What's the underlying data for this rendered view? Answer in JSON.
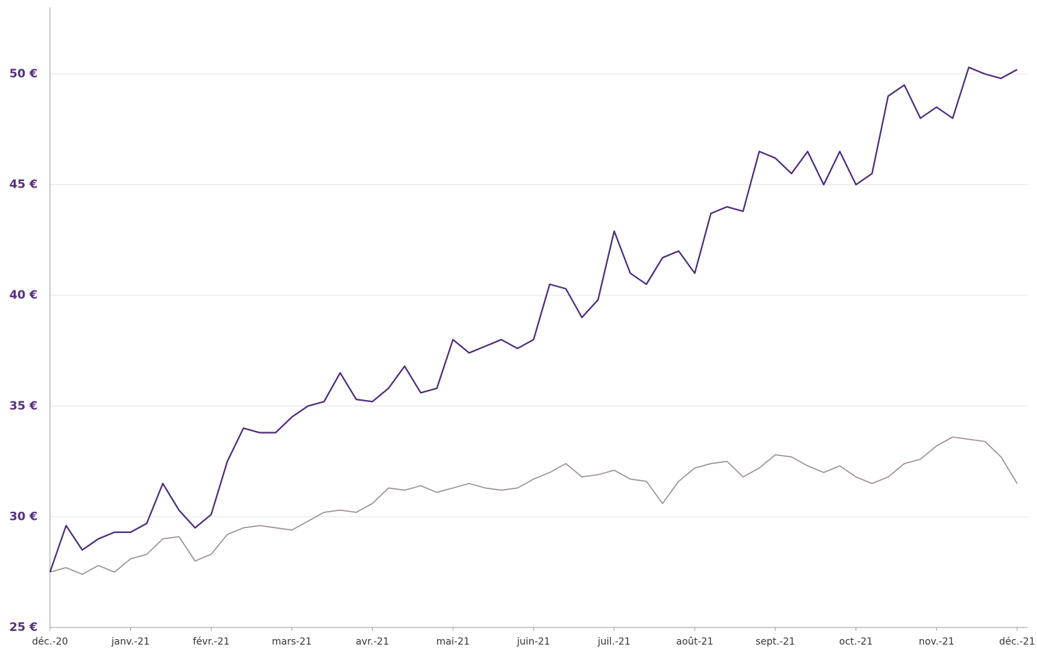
{
  "chart_data": {
    "type": "line",
    "categories": [
      "déc.-20",
      null,
      null,
      null,
      null,
      "janv.-21",
      null,
      null,
      null,
      null,
      "févr.-21",
      null,
      null,
      null,
      null,
      "mars-21",
      null,
      null,
      null,
      null,
      "avr.-21",
      null,
      null,
      null,
      null,
      "mai-21",
      null,
      null,
      null,
      null,
      "juin-21",
      null,
      null,
      null,
      null,
      "juil.-21",
      null,
      null,
      null,
      null,
      "août-21",
      null,
      null,
      null,
      null,
      "sept.-21",
      null,
      null,
      null,
      null,
      "oct.-21",
      null,
      null,
      null,
      null,
      "nov.-21",
      null,
      null,
      null,
      null,
      "déc.-21"
    ],
    "series": [
      {
        "color": "#4b2a7b",
        "values": [
          27.5,
          29.6,
          28.5,
          29.0,
          29.3,
          29.3,
          29.7,
          31.5,
          30.3,
          29.5,
          30.1,
          32.5,
          34.0,
          33.8,
          33.8,
          34.5,
          35.0,
          35.2,
          36.5,
          35.3,
          35.2,
          35.8,
          36.8,
          35.6,
          35.8,
          38.0,
          37.4,
          37.7,
          38.0,
          37.6,
          38.0,
          40.5,
          40.3,
          39.0,
          39.8,
          42.9,
          41.0,
          40.5,
          41.7,
          42.0,
          41.0,
          43.7,
          44.0,
          43.8,
          46.5,
          46.2,
          45.5,
          46.5,
          45.0,
          46.5,
          45.0,
          45.5,
          49.0,
          49.5,
          48.0,
          48.5,
          48.0,
          50.3,
          50.0,
          49.8,
          50.2
        ]
      },
      {
        "color": "#9a8d8d",
        "values": [
          27.5,
          27.7,
          27.4,
          27.8,
          27.5,
          28.1,
          28.3,
          29.0,
          29.1,
          28.0,
          28.3,
          29.2,
          29.5,
          29.6,
          29.5,
          29.4,
          29.8,
          30.2,
          30.3,
          30.2,
          30.6,
          31.3,
          31.2,
          31.4,
          31.1,
          31.3,
          31.5,
          31.3,
          31.2,
          31.3,
          31.7,
          32.0,
          32.4,
          31.8,
          31.9,
          32.1,
          31.7,
          31.6,
          30.6,
          31.6,
          32.2,
          32.4,
          32.5,
          31.8,
          32.2,
          32.8,
          32.7,
          32.3,
          32.0,
          32.3,
          31.8,
          31.5,
          31.8,
          32.4,
          32.6,
          33.2,
          33.6,
          33.5,
          33.4,
          32.7,
          31.5
        ]
      }
    ],
    "ylim": [
      25,
      53
    ],
    "yticks": [
      {
        "value": 25,
        "label": "25 €"
      },
      {
        "value": 30,
        "label": "30 €"
      },
      {
        "value": 35,
        "label": "35 €"
      },
      {
        "value": 40,
        "label": "40 €"
      },
      {
        "value": 45,
        "label": "45 €"
      },
      {
        "value": 50,
        "label": "50 €"
      }
    ],
    "grid": true
  }
}
